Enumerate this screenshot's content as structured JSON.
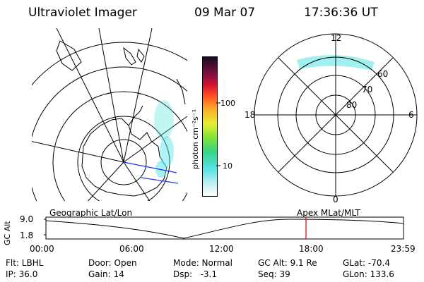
{
  "header": {
    "title": "Ultraviolet Imager",
    "date": "09 Mar 07",
    "time": "17:36:36 UT"
  },
  "colors": {
    "accent_marker": "#e00000",
    "aurora": "#52e3e3",
    "geo_overlay_line": "#2233ee"
  },
  "colorbar": {
    "unit_label": "photon cm⁻²s⁻¹",
    "tick_labels": [
      "100",
      "10"
    ],
    "scale": "log"
  },
  "polar_plot": {
    "mlt_labels": {
      "top": "12",
      "right": "6",
      "bottom": "0",
      "left": "18"
    },
    "mlat_labels": [
      "60",
      "70",
      "80"
    ]
  },
  "map_panel": {
    "overlay_left": "Geographic Lat/Lon",
    "overlay_right": "Apex MLat/MLT"
  },
  "altitude_plot": {
    "axis_title": "GC Alt",
    "y_ticks": [
      "9.0",
      "1.8"
    ],
    "x_ticks": [
      "00:00",
      "06:00",
      "12:00",
      "18:00",
      "23:59"
    ],
    "marker_time": "17:36"
  },
  "footer": {
    "filter": "Flt: LBHL",
    "door": "Door: Open",
    "mode": "Mode: Normal",
    "gc_alt": "GC Alt: 9.1 Re",
    "glat": "GLat: -70.4",
    "ip": "IP: 36.0",
    "gain": "Gain: 14",
    "dsp": "Dsp:   -3.1",
    "seq": "Seq: 39",
    "glon": "GLon: 133.6"
  }
}
